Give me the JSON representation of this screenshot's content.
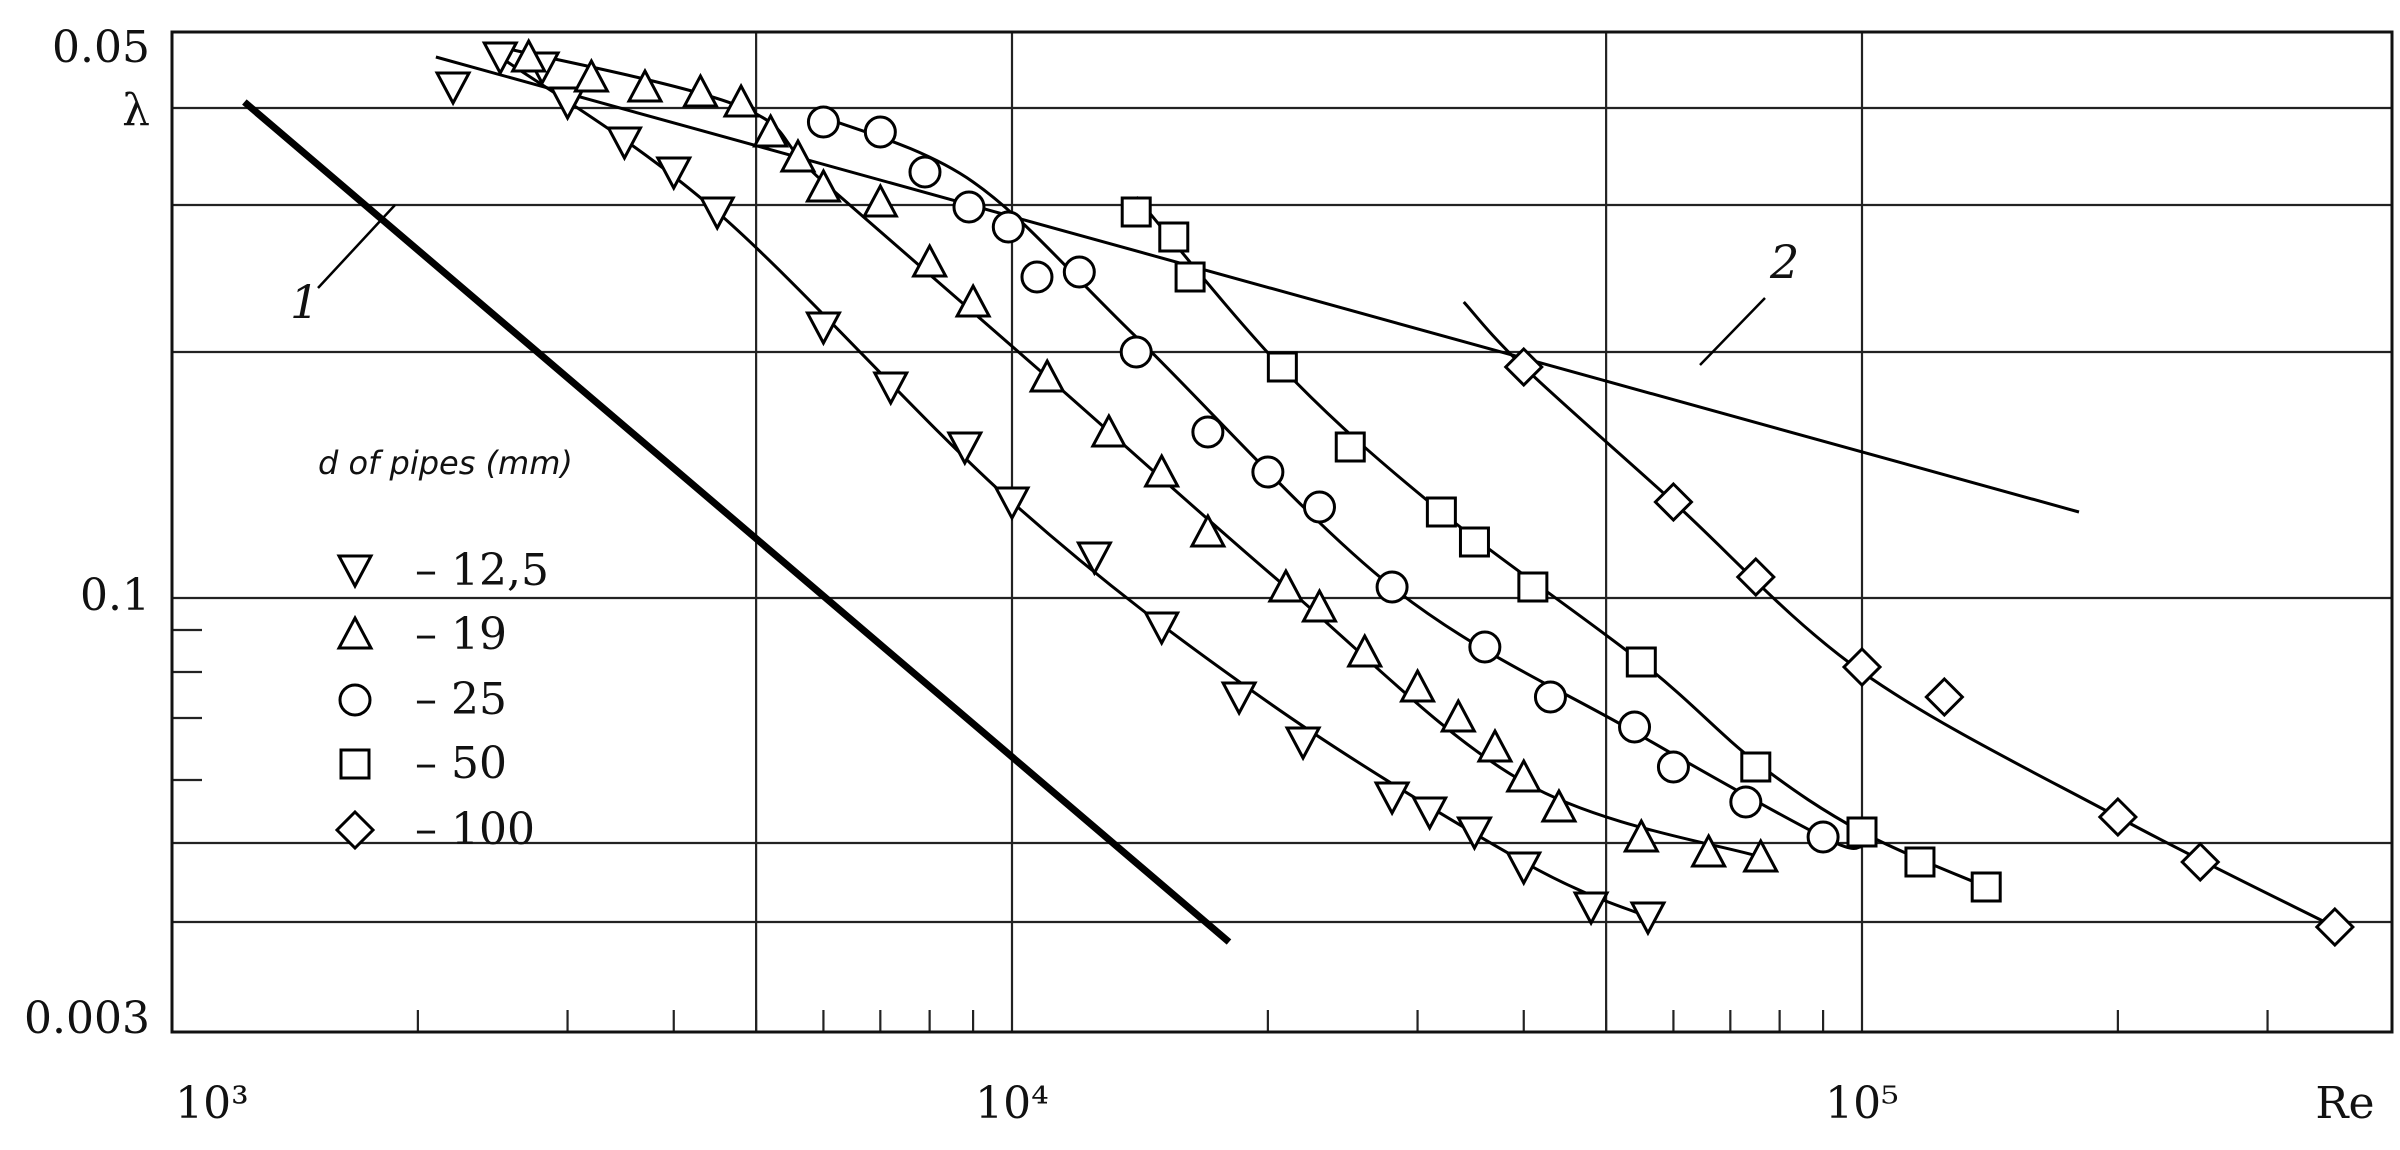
{
  "chart_data": {
    "type": "scatter",
    "title": "",
    "xlabel": "Re",
    "ylabel": "λ",
    "x_scale": "log",
    "xlim": [
      1000,
      400000
    ],
    "grid": true,
    "x_tick_labels": [
      "10³",
      "10⁴",
      "10⁵",
      "Re"
    ],
    "y_tick_labels": [
      "0.05",
      "λ",
      "0.1",
      "0.003"
    ],
    "legend": {
      "title": "d of pipes (mm)",
      "position": "left-middle",
      "entries": [
        {
          "marker": "triangle-down",
          "label": "– 12,5"
        },
        {
          "marker": "triangle-up",
          "label": "– 19"
        },
        {
          "marker": "circle",
          "label": "– 25"
        },
        {
          "marker": "square",
          "label": "– 50"
        },
        {
          "marker": "diamond",
          "label": "– 100"
        }
      ]
    },
    "reference_lines": [
      {
        "label": "1",
        "x": [
          1250,
          18000
        ],
        "y_frac": [
          0.93,
          0.09
        ],
        "style": "thick"
      },
      {
        "label": "2",
        "x": [
          2100,
          180000
        ],
        "y_frac": [
          0.975,
          0.52
        ],
        "style": "thin"
      }
    ],
    "series": [
      {
        "name": "– 12,5",
        "marker": "triangle-down",
        "points": [
          {
            "x": 2200,
            "y_frac": 0.945
          },
          {
            "x": 2500,
            "y_frac": 0.975
          },
          {
            "x": 2800,
            "y_frac": 0.965
          },
          {
            "x": 3000,
            "y_frac": 0.93
          },
          {
            "x": 3500,
            "y_frac": 0.89
          },
          {
            "x": 4000,
            "y_frac": 0.86
          },
          {
            "x": 4500,
            "y_frac": 0.82
          },
          {
            "x": 6000,
            "y_frac": 0.705
          },
          {
            "x": 7200,
            "y_frac": 0.645
          },
          {
            "x": 8800,
            "y_frac": 0.585
          },
          {
            "x": 10000,
            "y_frac": 0.53
          },
          {
            "x": 12500,
            "y_frac": 0.475
          },
          {
            "x": 15000,
            "y_frac": 0.405
          },
          {
            "x": 18500,
            "y_frac": 0.335
          },
          {
            "x": 22000,
            "y_frac": 0.29
          },
          {
            "x": 28000,
            "y_frac": 0.235
          },
          {
            "x": 31000,
            "y_frac": 0.22
          },
          {
            "x": 35000,
            "y_frac": 0.2
          },
          {
            "x": 40000,
            "y_frac": 0.165
          },
          {
            "x": 48000,
            "y_frac": 0.125
          },
          {
            "x": 56000,
            "y_frac": 0.115
          }
        ]
      },
      {
        "name": "– 19",
        "marker": "triangle-up",
        "points": [
          {
            "x": 2700,
            "y_frac": 0.975
          },
          {
            "x": 3200,
            "y_frac": 0.955
          },
          {
            "x": 3700,
            "y_frac": 0.945
          },
          {
            "x": 4300,
            "y_frac": 0.94
          },
          {
            "x": 4800,
            "y_frac": 0.93
          },
          {
            "x": 5200,
            "y_frac": 0.9
          },
          {
            "x": 5600,
            "y_frac": 0.875
          },
          {
            "x": 6000,
            "y_frac": 0.845
          },
          {
            "x": 7000,
            "y_frac": 0.83
          },
          {
            "x": 8000,
            "y_frac": 0.77
          },
          {
            "x": 9000,
            "y_frac": 0.73
          },
          {
            "x": 11000,
            "y_frac": 0.655
          },
          {
            "x": 13000,
            "y_frac": 0.6
          },
          {
            "x": 15000,
            "y_frac": 0.56
          },
          {
            "x": 17000,
            "y_frac": 0.5
          },
          {
            "x": 21000,
            "y_frac": 0.445
          },
          {
            "x": 23000,
            "y_frac": 0.425
          },
          {
            "x": 26000,
            "y_frac": 0.38
          },
          {
            "x": 30000,
            "y_frac": 0.345
          },
          {
            "x": 33500,
            "y_frac": 0.315
          },
          {
            "x": 37000,
            "y_frac": 0.285
          },
          {
            "x": 40000,
            "y_frac": 0.255
          },
          {
            "x": 44000,
            "y_frac": 0.225
          },
          {
            "x": 55000,
            "y_frac": 0.195
          },
          {
            "x": 66000,
            "y_frac": 0.18
          },
          {
            "x": 76000,
            "y_frac": 0.175
          }
        ]
      },
      {
        "name": "– 25",
        "marker": "circle",
        "points": [
          {
            "x": 6000,
            "y_frac": 0.91
          },
          {
            "x": 7000,
            "y_frac": 0.9
          },
          {
            "x": 7900,
            "y_frac": 0.86
          },
          {
            "x": 8900,
            "y_frac": 0.825
          },
          {
            "x": 9900,
            "y_frac": 0.805
          },
          {
            "x": 10700,
            "y_frac": 0.755
          },
          {
            "x": 12000,
            "y_frac": 0.76
          },
          {
            "x": 14000,
            "y_frac": 0.68
          },
          {
            "x": 17000,
            "y_frac": 0.6
          },
          {
            "x": 20000,
            "y_frac": 0.56
          },
          {
            "x": 23000,
            "y_frac": 0.525
          },
          {
            "x": 28000,
            "y_frac": 0.445
          },
          {
            "x": 36000,
            "y_frac": 0.385
          },
          {
            "x": 43000,
            "y_frac": 0.335
          },
          {
            "x": 54000,
            "y_frac": 0.305
          },
          {
            "x": 60000,
            "y_frac": 0.265
          },
          {
            "x": 73000,
            "y_frac": 0.23
          },
          {
            "x": 90000,
            "y_frac": 0.195
          }
        ]
      },
      {
        "name": "– 50",
        "marker": "square",
        "points": [
          {
            "x": 14000,
            "y_frac": 0.82
          },
          {
            "x": 15500,
            "y_frac": 0.795
          },
          {
            "x": 16200,
            "y_frac": 0.755
          },
          {
            "x": 20800,
            "y_frac": 0.665
          },
          {
            "x": 25000,
            "y_frac": 0.585
          },
          {
            "x": 32000,
            "y_frac": 0.52
          },
          {
            "x": 35000,
            "y_frac": 0.49
          },
          {
            "x": 41000,
            "y_frac": 0.445
          },
          {
            "x": 55000,
            "y_frac": 0.37
          },
          {
            "x": 75000,
            "y_frac": 0.265
          },
          {
            "x": 100000,
            "y_frac": 0.2
          },
          {
            "x": 117000,
            "y_frac": 0.17
          },
          {
            "x": 140000,
            "y_frac": 0.145
          }
        ]
      },
      {
        "name": "– 100",
        "marker": "diamond",
        "points": [
          {
            "x": 40000,
            "y_frac": 0.665
          },
          {
            "x": 60000,
            "y_frac": 0.53
          },
          {
            "x": 75000,
            "y_frac": 0.455
          },
          {
            "x": 100000,
            "y_frac": 0.365
          },
          {
            "x": 125000,
            "y_frac": 0.335
          },
          {
            "x": 200000,
            "y_frac": 0.215
          },
          {
            "x": 250000,
            "y_frac": 0.17
          },
          {
            "x": 360000,
            "y_frac": 0.105
          }
        ]
      }
    ],
    "fit_curves": [
      {
        "series": "– 12,5",
        "x": [
          2500,
          4500,
          10000,
          20000,
          40000,
          56000
        ],
        "y_frac": [
          0.975,
          0.82,
          0.53,
          0.33,
          0.17,
          0.115
        ]
      },
      {
        "series": "– 19",
        "x": [
          2500,
          4800,
          6000,
          11000,
          21000,
          40000,
          76000
        ],
        "y_frac": [
          0.985,
          0.925,
          0.85,
          0.655,
          0.445,
          0.25,
          0.175
        ]
      },
      {
        "series": "– 25",
        "x": [
          6000,
          9000,
          14000,
          28000,
          54000,
          90000,
          100000
        ],
        "y_frac": [
          0.915,
          0.85,
          0.695,
          0.445,
          0.3,
          0.195,
          0.185
        ]
      },
      {
        "series": "– 50",
        "x": [
          14000,
          21000,
          32000,
          55000,
          75000,
          100000,
          140000
        ],
        "y_frac": [
          0.835,
          0.66,
          0.52,
          0.37,
          0.27,
          0.2,
          0.145
        ]
      },
      {
        "series": "– 100",
        "x": [
          34000,
          40000,
          60000,
          100000,
          200000,
          360000
        ],
        "y_frac": [
          0.73,
          0.665,
          0.53,
          0.36,
          0.215,
          0.105
        ]
      }
    ]
  }
}
